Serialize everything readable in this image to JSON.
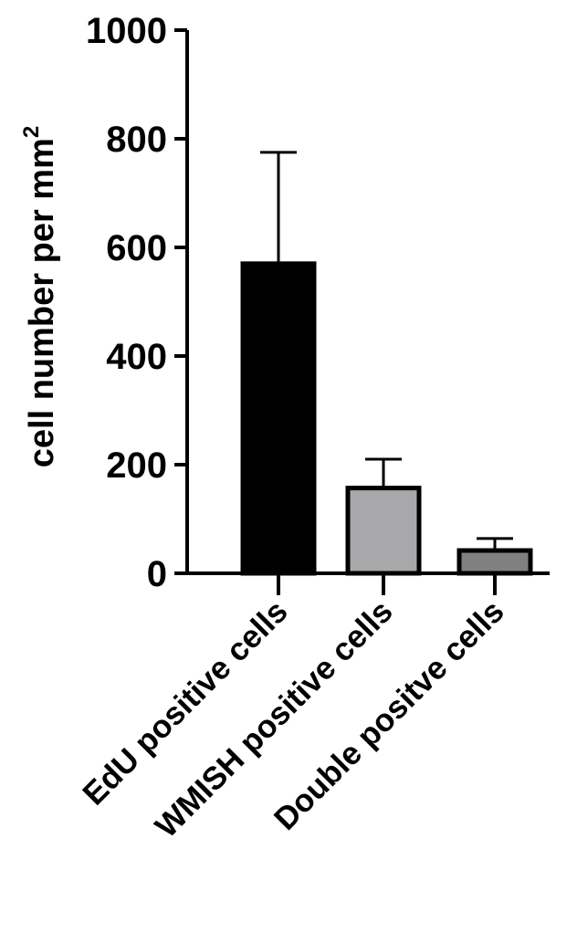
{
  "chart_data": {
    "type": "bar",
    "categories": [
      "EdU positive cells",
      "WMISH positive cells",
      "Double positve cells"
    ],
    "values": [
      570,
      157,
      42
    ],
    "error_upper": [
      775,
      210,
      64
    ],
    "bar_colors": [
      "#000000",
      "#a8a8ab",
      "#808080"
    ],
    "ylabel": "cell number per mm",
    "ylabel_superscript": "2",
    "ylim": [
      0,
      1000
    ],
    "yticks": [
      0,
      200,
      400,
      600,
      800,
      1000
    ],
    "ytick_labels": [
      "0",
      "200",
      "400",
      "600",
      "800",
      "1000"
    ],
    "grid": false,
    "legend": "none"
  }
}
